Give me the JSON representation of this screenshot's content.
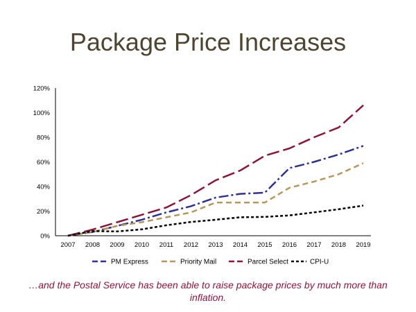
{
  "slide": {
    "title": "Package Price Increases",
    "footnote": "…and the Postal Service has been able to raise package prices by much more than inflation."
  },
  "chart_data": {
    "type": "line",
    "x": [
      "2007",
      "2008",
      "2009",
      "2010",
      "2011",
      "2012",
      "2013",
      "2014",
      "2015",
      "2016",
      "2017",
      "2018",
      "2019"
    ],
    "ylim": [
      0,
      120
    ],
    "yticks": [
      0,
      20,
      40,
      60,
      80,
      100,
      120
    ],
    "ytick_labels": [
      "0%",
      "20%",
      "40%",
      "60%",
      "80%",
      "100%",
      "120%"
    ],
    "grid": false,
    "legend_position": "bottom",
    "series": [
      {
        "name": "PM Express",
        "color": "#2e3192",
        "dash": "dash-dot",
        "values": [
          0,
          3,
          8,
          13,
          19,
          24,
          31,
          34,
          35,
          55,
          60,
          66,
          73
        ]
      },
      {
        "name": "Priority Mail",
        "color": "#b5975b",
        "dash": "dash",
        "values": [
          0,
          3,
          8,
          11,
          15,
          19,
          27,
          27,
          27,
          39,
          44,
          50,
          59
        ]
      },
      {
        "name": "Parcel Select",
        "color": "#8a1538",
        "dash": "long-dash",
        "values": [
          0,
          5,
          11,
          17,
          23,
          33,
          45,
          53,
          65,
          71,
          80,
          88,
          106
        ]
      },
      {
        "name": "CPI-U",
        "color": "#000000",
        "dash": "dot",
        "values": [
          0,
          3.8,
          3.5,
          5.2,
          8.5,
          11.2,
          13,
          15,
          15.3,
          16.5,
          19,
          21.5,
          24.5
        ]
      }
    ]
  }
}
